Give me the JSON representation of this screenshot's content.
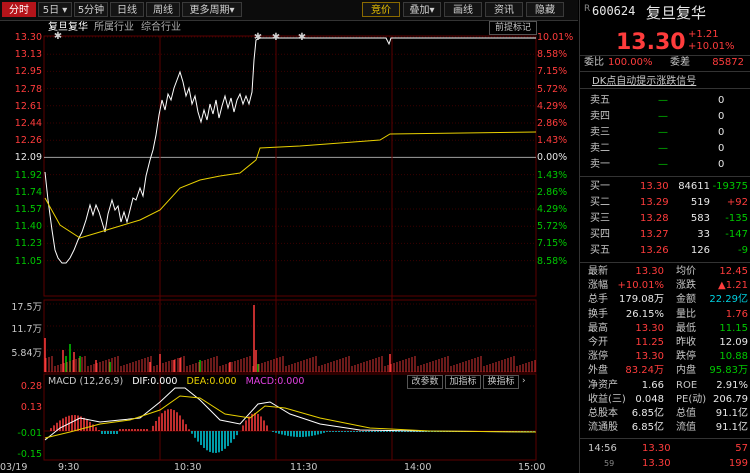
{
  "toolbar": {
    "left_tabs": [
      "分时",
      "5日",
      "5分钟",
      "日线",
      "周线",
      "更多周期"
    ],
    "right_tabs": [
      "竞价",
      "叠加",
      "画线",
      "资讯",
      "隐藏"
    ]
  },
  "subtabs": [
    "复旦复华",
    "所属行业",
    "综合行业"
  ],
  "notice_btn": "前提标记",
  "price_axis_left": [
    "13.30",
    "13.13",
    "12.95",
    "12.78",
    "12.61",
    "12.44",
    "12.26",
    "12.09",
    "11.92",
    "11.74",
    "11.57",
    "11.40",
    "11.23",
    "11.05"
  ],
  "price_axis_right": [
    "10.01%",
    "8.58%",
    "7.15%",
    "5.72%",
    "4.29%",
    "2.86%",
    "1.43%",
    "0.00%",
    "1.43%",
    "2.86%",
    "4.29%",
    "5.72%",
    "7.15%",
    "8.58%"
  ],
  "volume_axis": [
    "17.5万",
    "11.7万",
    "5.84万"
  ],
  "macd": {
    "label": "MACD (12,26,9)",
    "dif": "DIF:0.000",
    "dea": "DEA:0.000",
    "macd": "MACD:0.000",
    "buttons": [
      "改参数",
      "加指标",
      "换指标"
    ],
    "axis": [
      "0.28",
      "0.13",
      "-0.01",
      "-0.15"
    ]
  },
  "time_axis": [
    "03/19",
    "9:30",
    "10:30",
    "11:30",
    "14:00",
    "15:00"
  ],
  "colors": {
    "up": "#ff3c3c",
    "down": "#00c800",
    "price_line": "#ffffff",
    "avg_line": "#e8d000",
    "macd_dif": "#ffffff",
    "macd_dea": "#e8d000"
  },
  "quote": {
    "code": "600624",
    "name": "复旦复华",
    "price": "13.30",
    "change": "+1.21",
    "change_pct": "+10.01%",
    "weibi_label": "委比",
    "weibi_value": "100.00%",
    "weicha_label": "委差",
    "weicha_value": "85872",
    "dk_label": "DK点自动提示涨跌信号",
    "sell": [
      {
        "label": "卖五",
        "price": "—",
        "vol": "0"
      },
      {
        "label": "卖四",
        "price": "—",
        "vol": "0"
      },
      {
        "label": "卖三",
        "price": "—",
        "vol": "0"
      },
      {
        "label": "卖二",
        "price": "—",
        "vol": "0"
      },
      {
        "label": "卖一",
        "price": "—",
        "vol": "0"
      }
    ],
    "buy": [
      {
        "label": "买一",
        "price": "13.30",
        "vol": "84611",
        "chg": "-19375"
      },
      {
        "label": "买二",
        "price": "13.29",
        "vol": "519",
        "chg": "+92"
      },
      {
        "label": "买三",
        "price": "13.28",
        "vol": "583",
        "chg": "-135"
      },
      {
        "label": "买四",
        "price": "13.27",
        "vol": "33",
        "chg": "-147"
      },
      {
        "label": "买五",
        "price": "13.26",
        "vol": "126",
        "chg": "-9"
      }
    ],
    "stats": [
      {
        "l1": "最新",
        "v1": "13.30",
        "c1": "red",
        "l2": "均价",
        "v2": "12.45",
        "c2": "red"
      },
      {
        "l1": "涨幅",
        "v1": "+10.01%",
        "c1": "red",
        "l2": "涨跌",
        "v2": "▲1.21",
        "c2": "red"
      },
      {
        "l1": "总手",
        "v1": "179.08万",
        "c1": "white",
        "l2": "金额",
        "v2": "22.29亿",
        "c2": "cyan"
      },
      {
        "l1": "换手",
        "v1": "26.15%",
        "c1": "white",
        "l2": "量比",
        "v2": "1.76",
        "c2": "red"
      },
      {
        "l1": "最高",
        "v1": "13.30",
        "c1": "red",
        "l2": "最低",
        "v2": "11.15",
        "c2": "green"
      },
      {
        "l1": "今开",
        "v1": "11.25",
        "c1": "red",
        "l2": "昨收",
        "v2": "12.09",
        "c2": "white"
      },
      {
        "l1": "涨停",
        "v1": "13.30",
        "c1": "red",
        "l2": "跌停",
        "v2": "10.88",
        "c2": "green"
      },
      {
        "l1": "外盘",
        "v1": "83.24万",
        "c1": "red",
        "l2": "内盘",
        "v2": "95.83万",
        "c2": "green"
      },
      {
        "l1": "净资产",
        "v1": "1.66",
        "c1": "white",
        "l2": "ROE",
        "v2": "2.91%",
        "c2": "white"
      },
      {
        "l1": "收益(三)",
        "v1": "0.048",
        "c1": "white",
        "l2": "PE(动)",
        "v2": "206.79",
        "c2": "white"
      },
      {
        "l1": "总股本",
        "v1": "6.85亿",
        "c1": "white",
        "l2": "总值",
        "v2": "91.1亿",
        "c2": "white"
      },
      {
        "l1": "流通股",
        "v1": "6.85亿",
        "c1": "white",
        "l2": "流值",
        "v2": "91.1亿",
        "c2": "white"
      }
    ],
    "ticks": [
      {
        "time": "14:56",
        "price": "13.30",
        "vol": "57"
      },
      {
        "time": "",
        "price": "13.30",
        "vol": "199"
      }
    ],
    "tick_extra": "59"
  }
}
